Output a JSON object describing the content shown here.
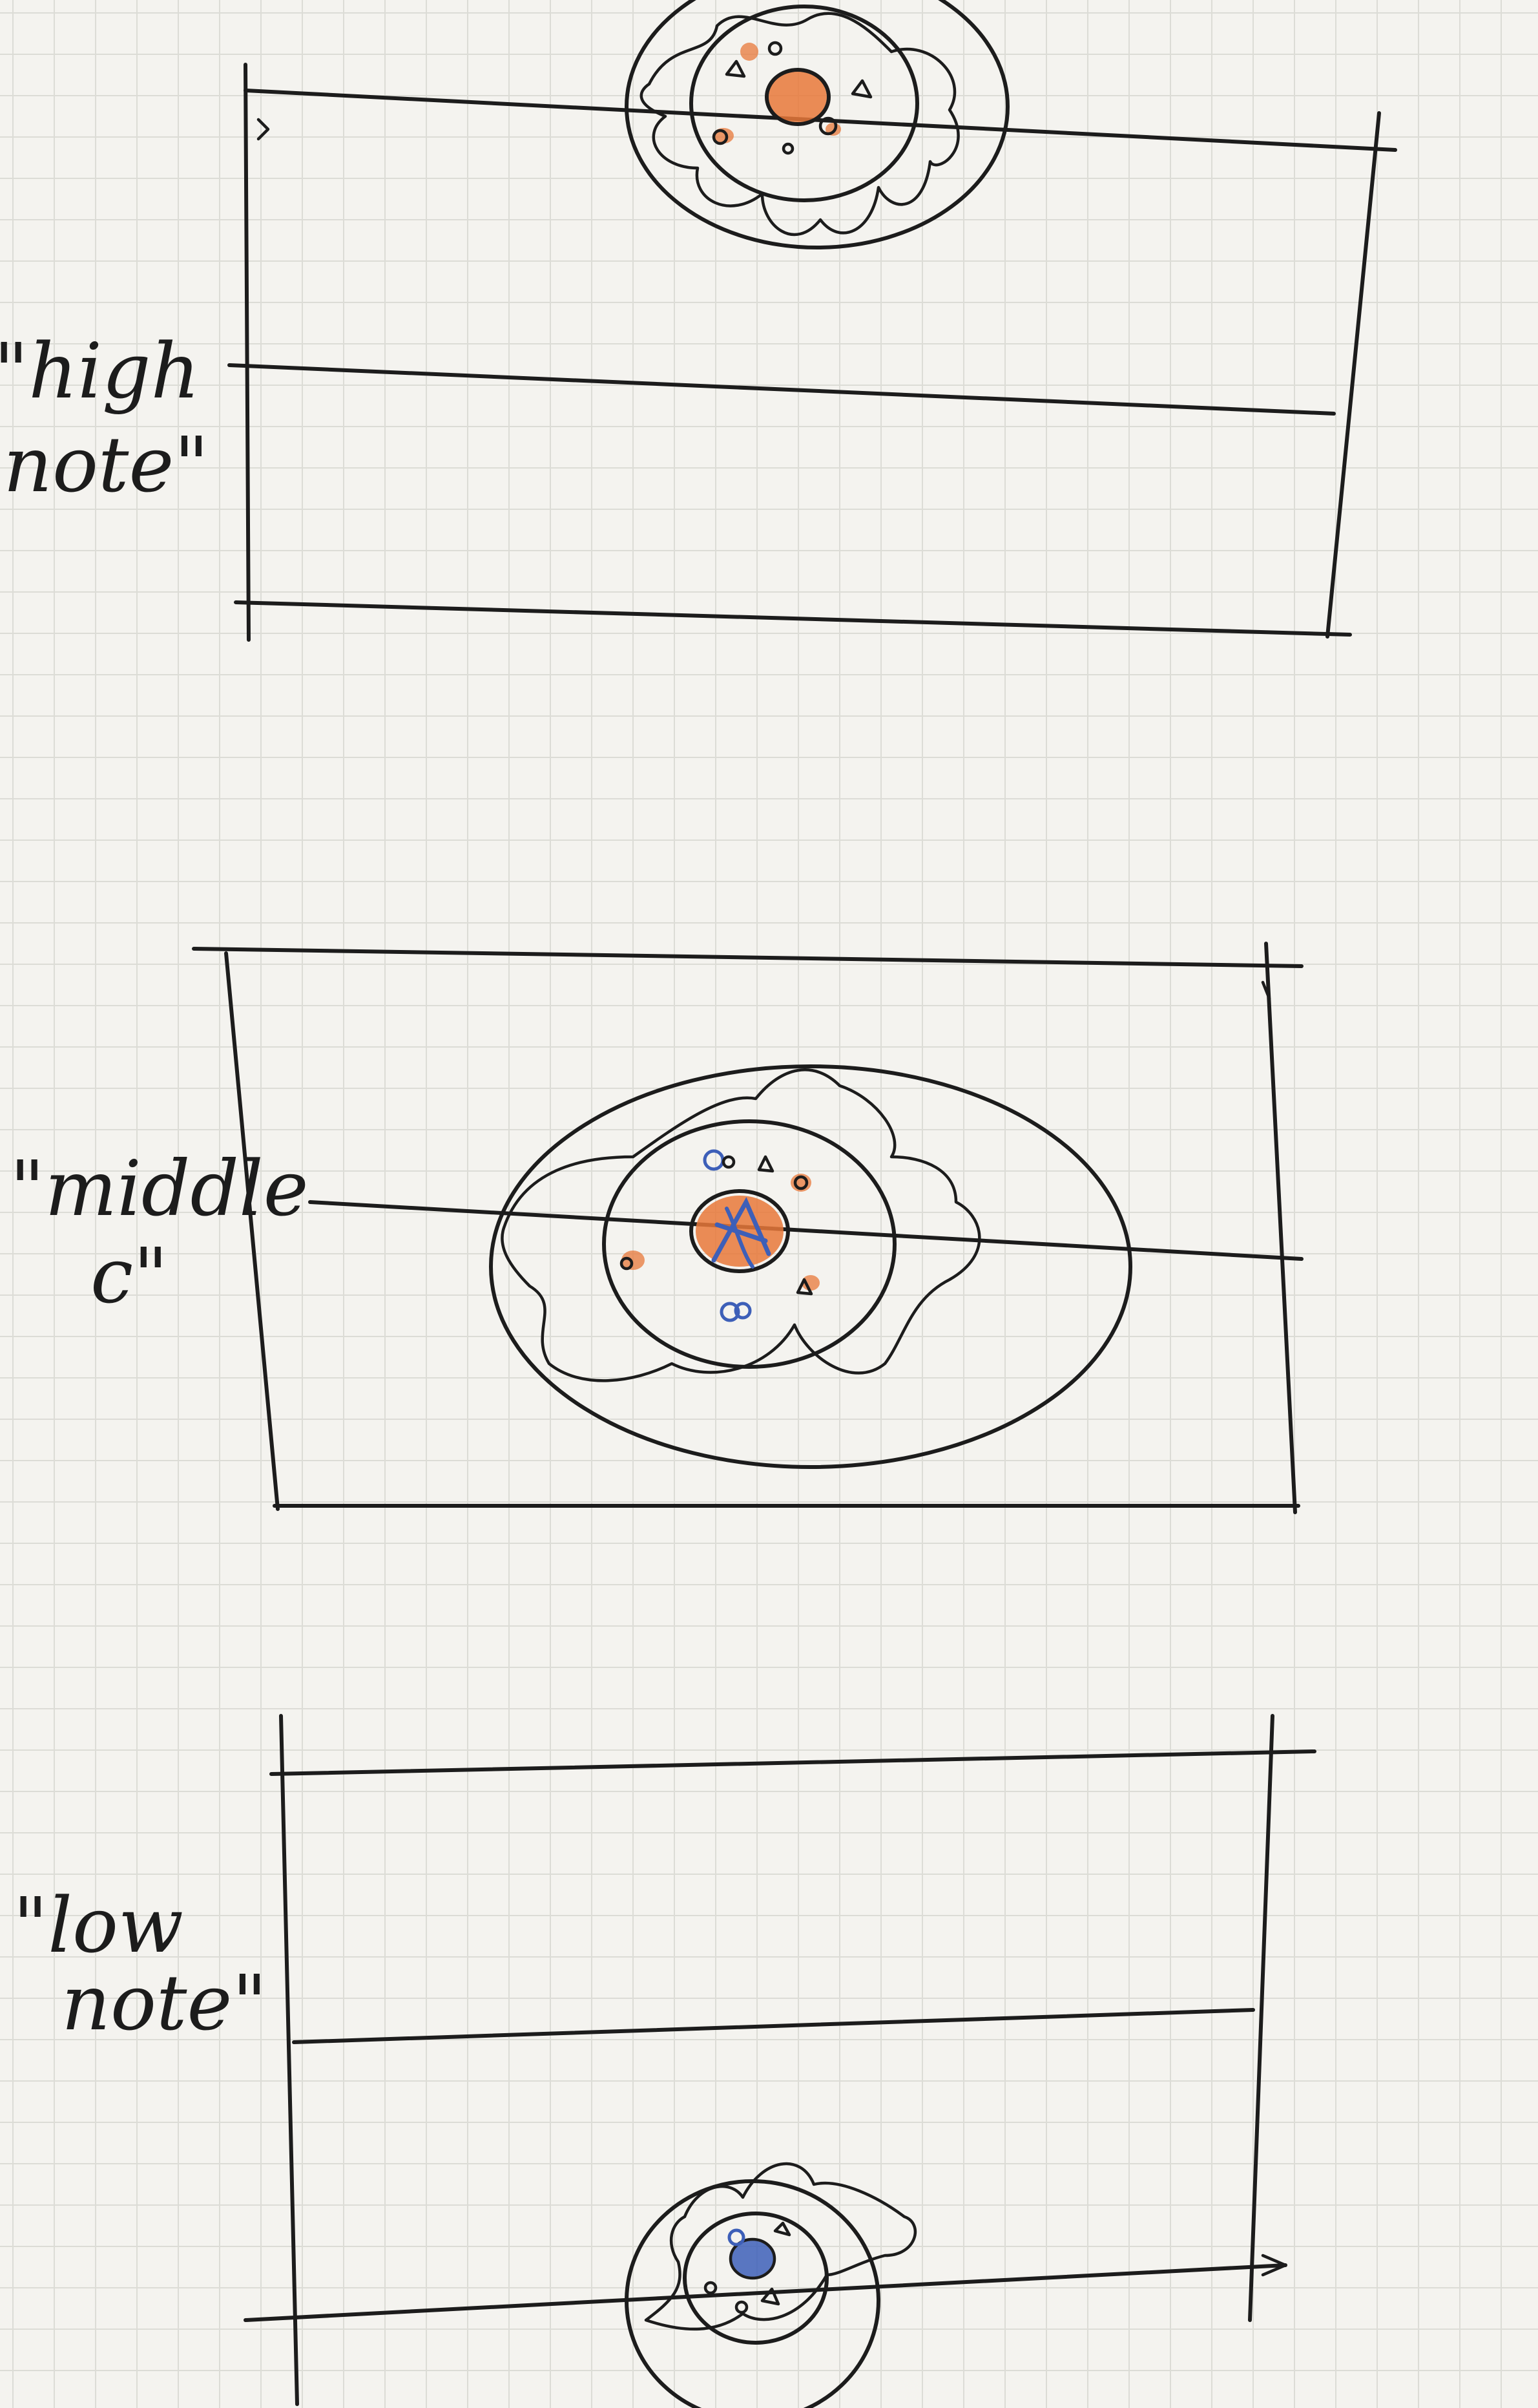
{
  "labels": {
    "high": [
      "\"high",
      "note\""
    ],
    "middle": [
      "\"middle",
      "c\""
    ],
    "low": [
      "\"low",
      "note\""
    ]
  },
  "colors": {
    "paper": "#f4f3ef",
    "grid": "#dcdcd6",
    "ink": "#1c1c1c",
    "orange": "#e8783a",
    "blue": "#3d5fb8"
  }
}
